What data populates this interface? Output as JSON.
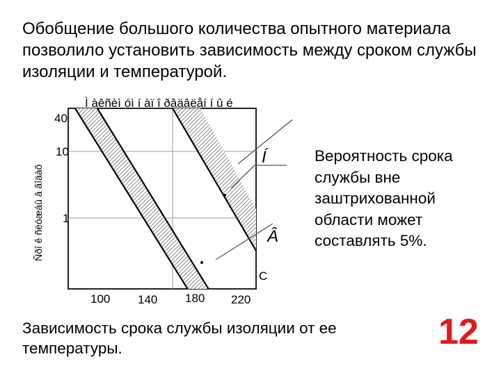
{
  "slide": {
    "heading": "Обобщение большого количества опытного материала позволило установить зависимость между сроком службы изоляции и температурой.",
    "side_note": "Вероятность срока службы вне заштрихованной области может составлять 5%.",
    "caption": "Зависимость срока службы изоляции от ее температуры.",
    "slide_number": "12"
  },
  "chart_data": {
    "type": "line",
    "title": "Ì àêñèì óì  í àï î ðâäâëåí í û é",
    "ylabel": "Ñðî ê ñëóæáû â ãîäàõ",
    "xlabel": "",
    "x_ticks": [
      "100",
      "140",
      "180",
      "220"
    ],
    "y_ticks": [
      "40",
      "10",
      "1"
    ],
    "y_scale": "log",
    "grid": true,
    "bands": [
      {
        "label": "Â",
        "hatched": true,
        "edges": [
          [
            [
              100,
              40
            ],
            [
              190,
              0.3
            ]
          ],
          [
            [
              118,
              40
            ],
            [
              205,
              0.3
            ]
          ]
        ]
      },
      {
        "label": "Í",
        "hatched": true,
        "edges": [
          [
            [
              178,
              40
            ],
            [
              245,
              1.5
            ]
          ],
          [
            [
              197,
              40
            ],
            [
              245,
              4
            ]
          ]
        ]
      }
    ],
    "annotations": [
      "Í",
      "Â",
      "C"
    ]
  }
}
